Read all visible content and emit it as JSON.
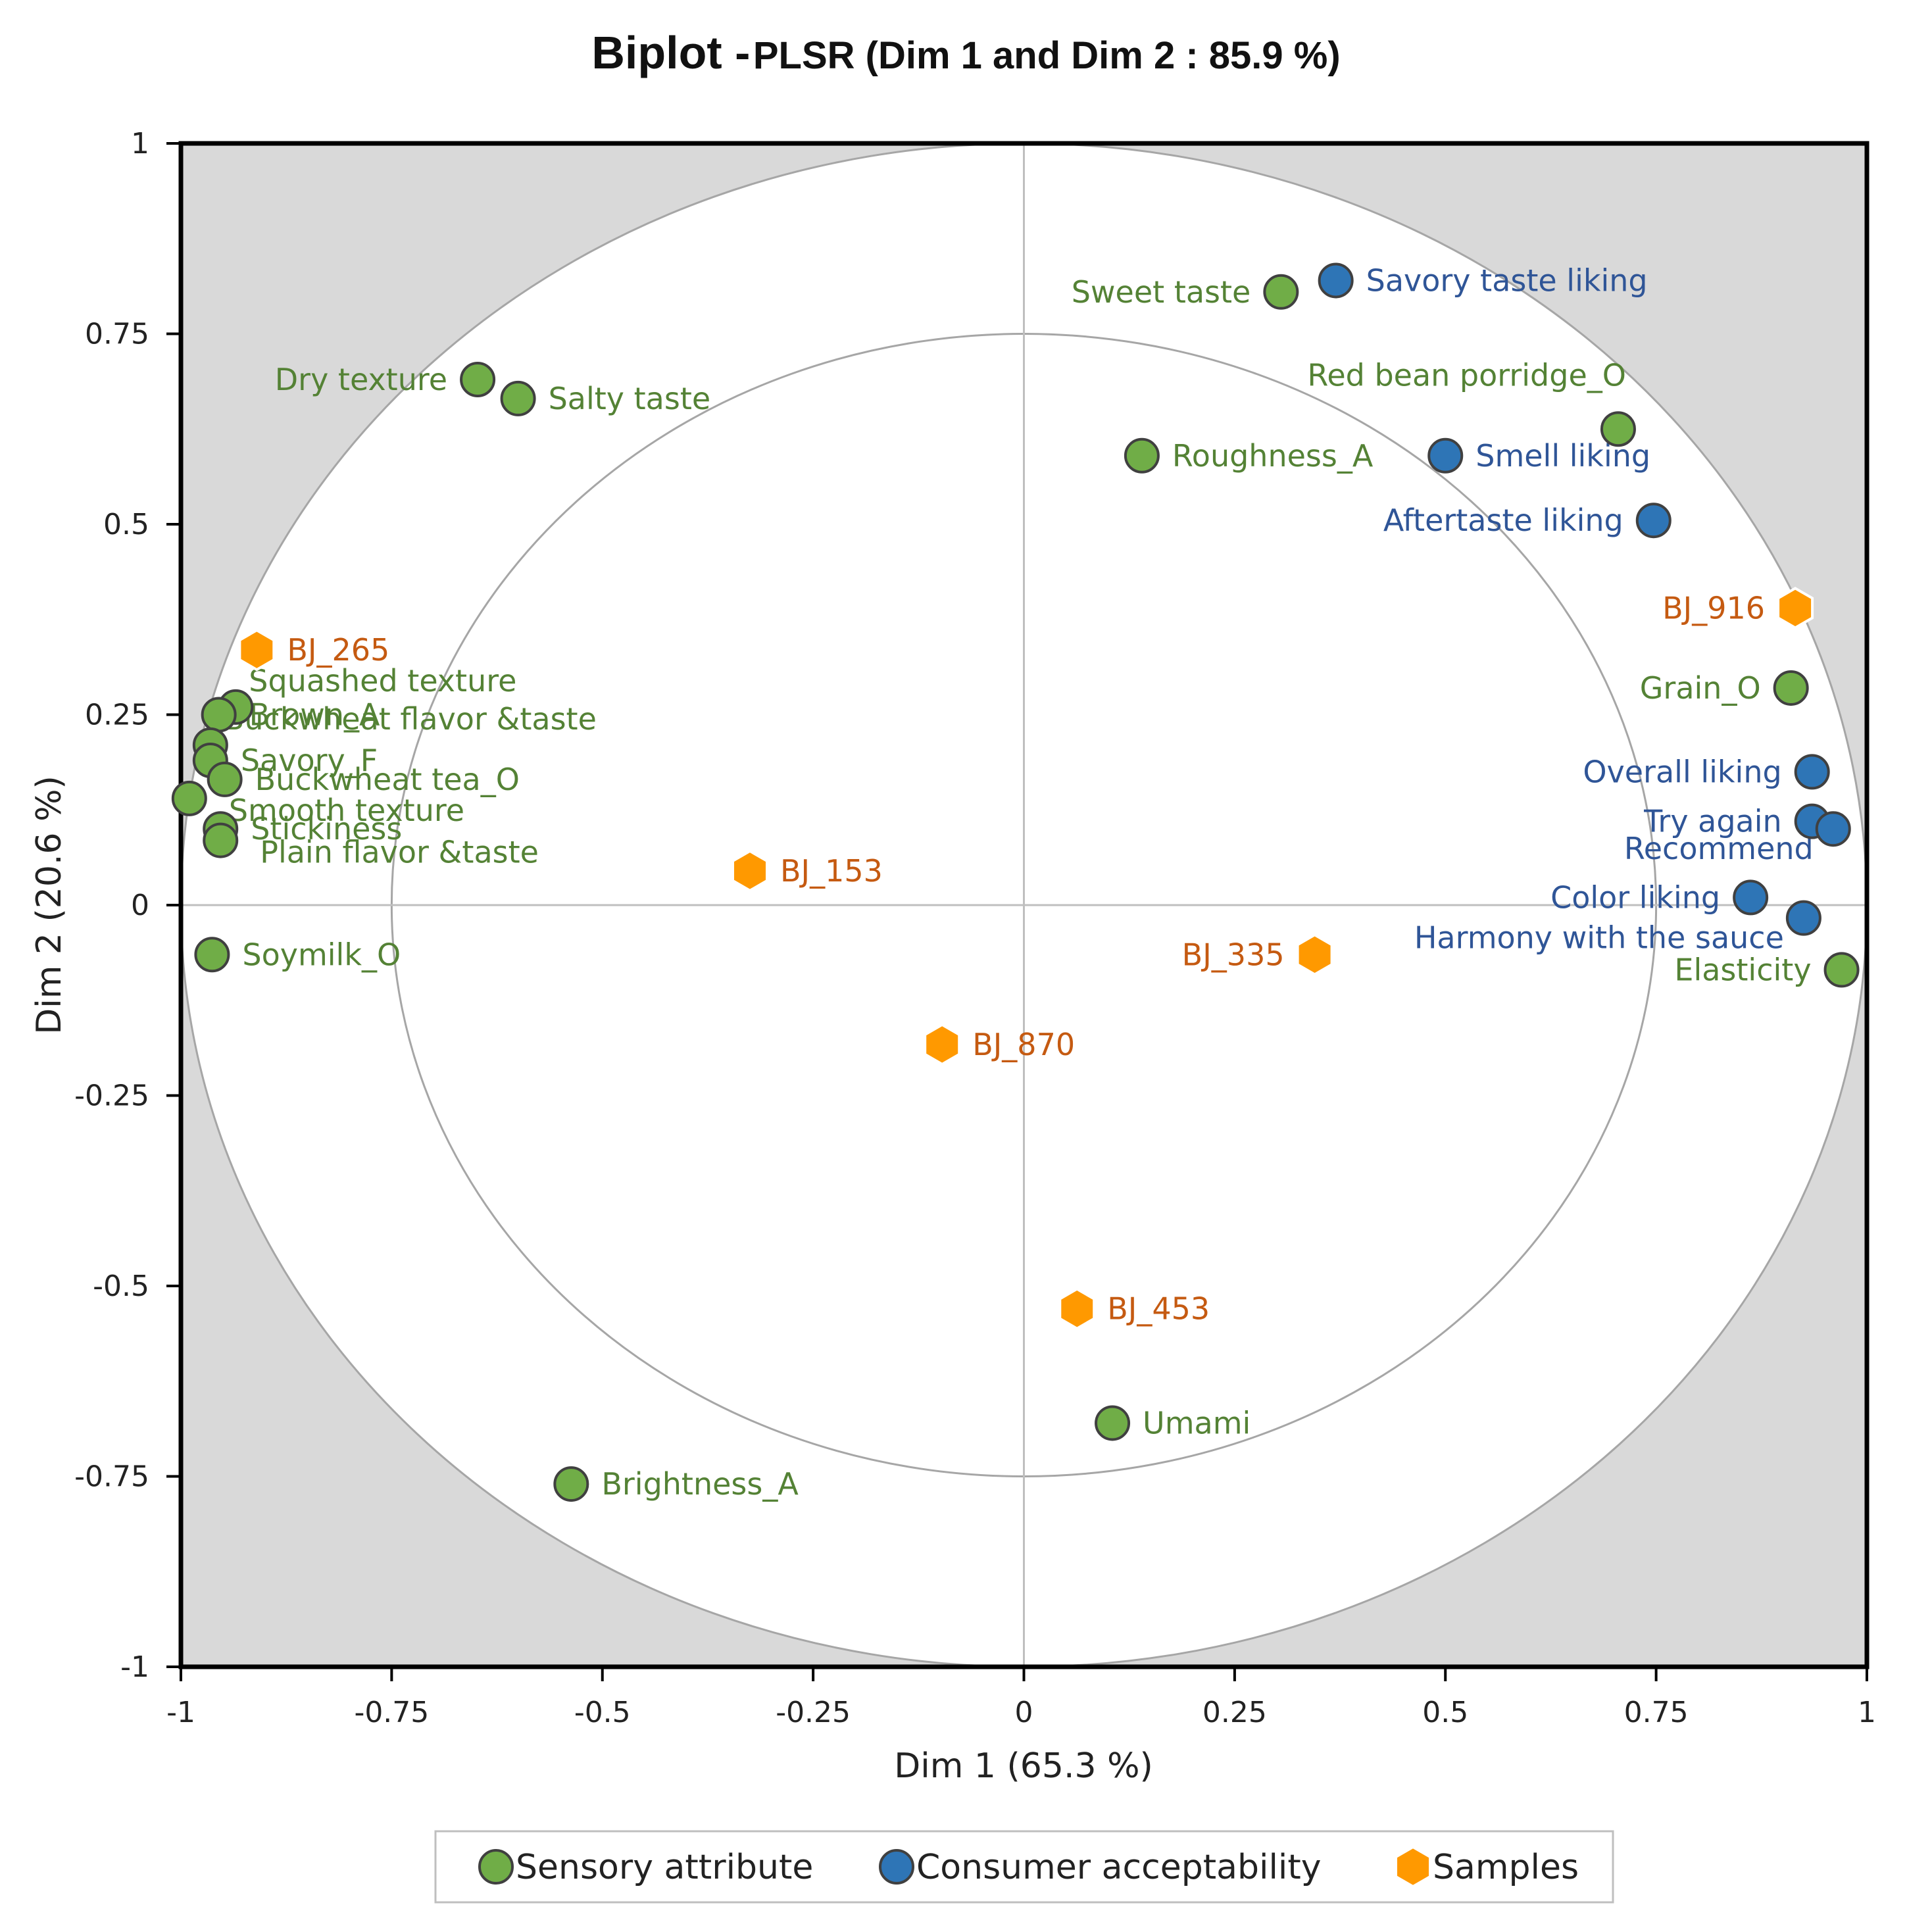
{
  "chart_data": {
    "type": "scatter",
    "title": "Biplot -",
    "subtitle": "PLSR (Dim 1 and Dim 2 : 85.9 %)",
    "xlabel": "Dim 1 (65.3 %)",
    "ylabel": "Dim 2 (20.6 %)",
    "xlim": [
      -1,
      1
    ],
    "ylim": [
      -1,
      1
    ],
    "xticks": [
      "-1",
      "-0.75",
      "-0.5",
      "-0.25",
      "0",
      "0.25",
      "0.5",
      "0.75",
      "1"
    ],
    "yticks": [
      "1",
      "0.75",
      "0.5",
      "0.25",
      "0",
      "-0.25",
      "-0.5",
      "-0.75",
      "-1"
    ],
    "xtick_values": [
      -1,
      -0.75,
      -0.5,
      -0.25,
      0,
      0.25,
      0.5,
      0.75,
      1
    ],
    "ytick_values": [
      1,
      0.75,
      0.5,
      0.25,
      0,
      -0.25,
      -0.5,
      -0.75,
      -1
    ],
    "circles": [
      1,
      0.75
    ],
    "legend_position": "bottom",
    "series": [
      {
        "name": "Sensory attribute",
        "marker": "circle",
        "color": "#70AD47",
        "label_color": "#548235",
        "points": [
          {
            "label": "Sweet taste",
            "x": 0.305,
            "y": 0.805,
            "anchor": "left"
          },
          {
            "label": "Dry texture",
            "x": -0.648,
            "y": 0.69,
            "anchor": "left"
          },
          {
            "label": "Salty taste",
            "x": -0.6,
            "y": 0.665,
            "anchor": "right"
          },
          {
            "label": "Red bean porridge_O",
            "x": 0.705,
            "y": 0.625,
            "anchor": "above"
          },
          {
            "label": "Roughness_A",
            "x": 0.14,
            "y": 0.59,
            "anchor": "right"
          },
          {
            "label": "Grain_O",
            "x": 0.91,
            "y": 0.285,
            "anchor": "left"
          },
          {
            "label": "Squashed texture",
            "x": -0.935,
            "y": 0.26,
            "anchor": "above-right"
          },
          {
            "label": "Brown_A",
            "x": -0.955,
            "y": 0.25,
            "anchor": "right"
          },
          {
            "label": "Buckwheat flavor &taste",
            "x": -0.965,
            "y": 0.21,
            "anchor": "above-right"
          },
          {
            "label": "Savory_F",
            "x": -0.965,
            "y": 0.19,
            "anchor": "right"
          },
          {
            "label": "Buckwheat tea_O",
            "x": -0.948,
            "y": 0.165,
            "anchor": "right"
          },
          {
            "label": "Smooth texture",
            "x": -0.99,
            "y": 0.14,
            "anchor": "below-right"
          },
          {
            "label": "Stickiness",
            "x": -0.953,
            "y": 0.1,
            "anchor": "right"
          },
          {
            "label": "Plain flavor &taste",
            "x": -0.953,
            "y": 0.085,
            "anchor": "below-right"
          },
          {
            "label": "Soymilk_O",
            "x": -0.963,
            "y": -0.065,
            "anchor": "right"
          },
          {
            "label": "Elasticity",
            "x": 0.97,
            "y": -0.085,
            "anchor": "left"
          },
          {
            "label": "Umami",
            "x": 0.105,
            "y": -0.68,
            "anchor": "right"
          },
          {
            "label": "Brightness_A",
            "x": -0.537,
            "y": -0.76,
            "anchor": "right"
          }
        ]
      },
      {
        "name": "Consumer acceptability",
        "marker": "circle",
        "color": "#2E75B6",
        "label_color": "#2F5597",
        "points": [
          {
            "label": "Savory taste liking",
            "x": 0.37,
            "y": 0.82,
            "anchor": "right"
          },
          {
            "label": "Smell liking",
            "x": 0.5,
            "y": 0.59,
            "anchor": "right"
          },
          {
            "label": "Aftertaste liking",
            "x": 0.747,
            "y": 0.505,
            "anchor": "left"
          },
          {
            "label": "Overall liking",
            "x": 0.935,
            "y": 0.175,
            "anchor": "left"
          },
          {
            "label": "Try again",
            "x": 0.935,
            "y": 0.11,
            "anchor": "left"
          },
          {
            "label": "Recommend",
            "x": 0.96,
            "y": 0.1,
            "anchor": "below-left"
          },
          {
            "label": "Color liking",
            "x": 0.862,
            "y": 0.01,
            "anchor": "left"
          },
          {
            "label": "Harmony with the sauce",
            "x": 0.925,
            "y": -0.017,
            "anchor": "below-left"
          }
        ]
      },
      {
        "name": "Samples",
        "marker": "hexagon",
        "color": "#FF9900",
        "label_color": "#C55A11",
        "points": [
          {
            "label": "BJ_265",
            "x": -0.91,
            "y": 0.335,
            "anchor": "right"
          },
          {
            "label": "BJ_916",
            "x": 0.915,
            "y": 0.39,
            "anchor": "left"
          },
          {
            "label": "BJ_153",
            "x": -0.325,
            "y": 0.045,
            "anchor": "right"
          },
          {
            "label": "BJ_335",
            "x": 0.345,
            "y": -0.065,
            "anchor": "left"
          },
          {
            "label": "BJ_870",
            "x": -0.097,
            "y": -0.183,
            "anchor": "right"
          },
          {
            "label": "BJ_453",
            "x": 0.063,
            "y": -0.53,
            "anchor": "right"
          }
        ]
      }
    ]
  }
}
